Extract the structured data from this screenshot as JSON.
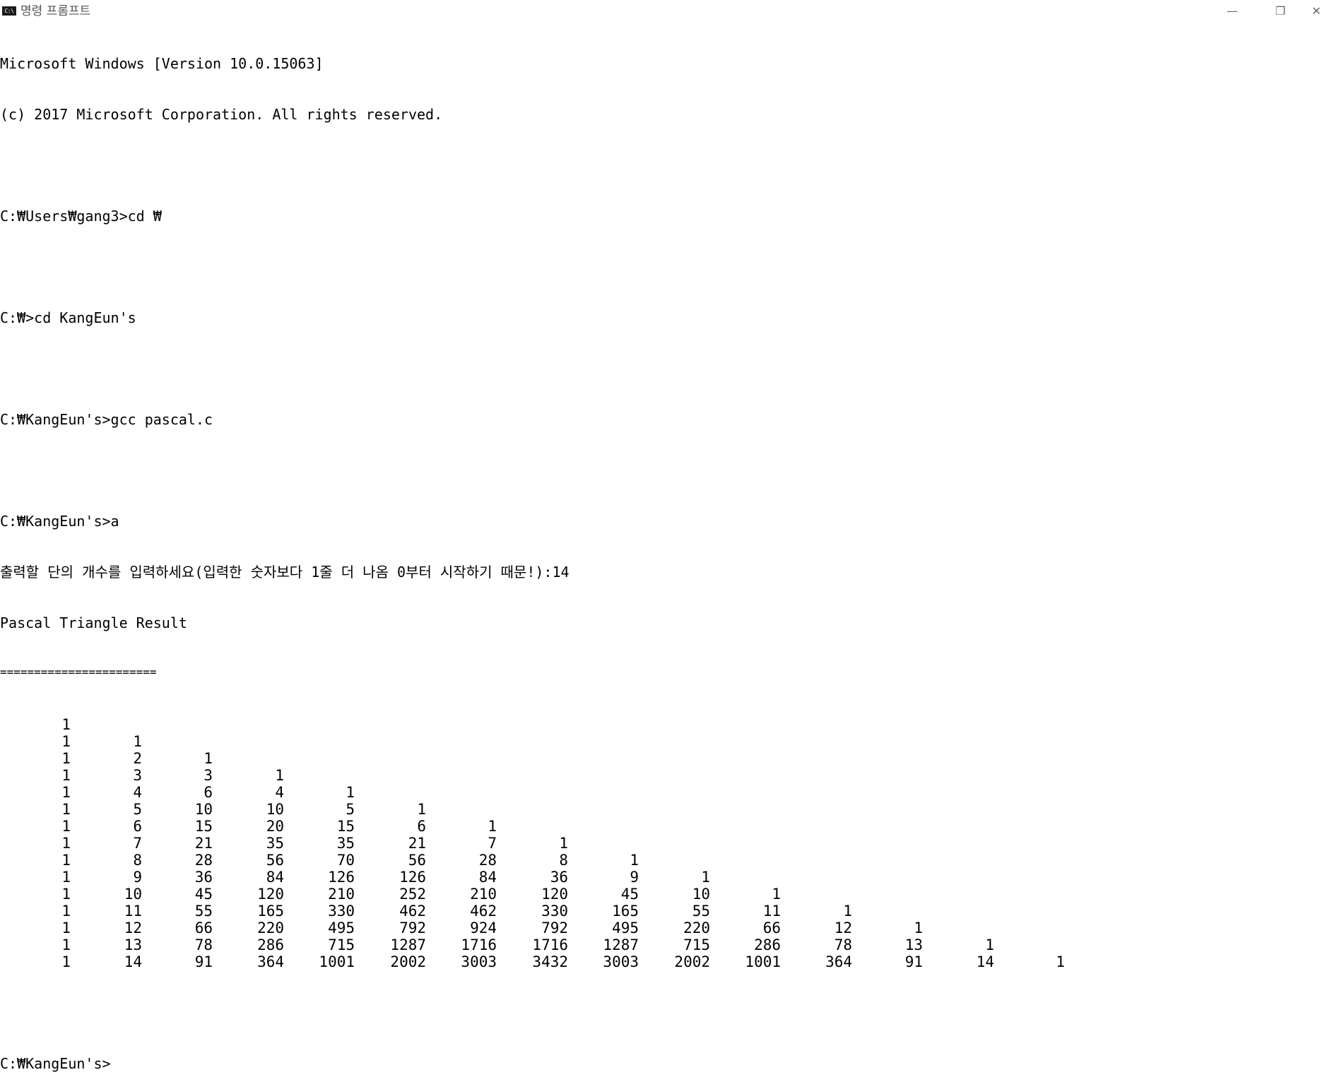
{
  "window": {
    "icon_label": "C:\\",
    "title": "명령 프롬프트",
    "minimize_glyph": "—",
    "maximize_glyph": "❐",
    "close_glyph": "✕"
  },
  "console": {
    "lines_before": [
      "Microsoft Windows [Version 10.0.15063]",
      "(c) 2017 Microsoft Corporation. All rights reserved.",
      "",
      "C:₩Users₩gang3>cd ₩",
      "",
      "C:₩>cd KangEun's",
      "",
      "C:₩KangEun's>gcc pascal.c",
      "",
      "C:₩KangEun's>a",
      "출력할 단의 개수를 입력하세요(입력한 숫자보다 1줄 더 나옴 0부터 시작하기 때문!):14",
      "Pascal Triangle Result"
    ],
    "separator": "=======================",
    "triangle_rows": [
      [
        1
      ],
      [
        1,
        1
      ],
      [
        1,
        2,
        1
      ],
      [
        1,
        3,
        3,
        1
      ],
      [
        1,
        4,
        6,
        4,
        1
      ],
      [
        1,
        5,
        10,
        10,
        5,
        1
      ],
      [
        1,
        6,
        15,
        20,
        15,
        6,
        1
      ],
      [
        1,
        7,
        21,
        35,
        35,
        21,
        7,
        1
      ],
      [
        1,
        8,
        28,
        56,
        70,
        56,
        28,
        8,
        1
      ],
      [
        1,
        9,
        36,
        84,
        126,
        126,
        84,
        36,
        9,
        1
      ],
      [
        1,
        10,
        45,
        120,
        210,
        252,
        210,
        120,
        45,
        10,
        1
      ],
      [
        1,
        11,
        55,
        165,
        330,
        462,
        462,
        330,
        165,
        55,
        11,
        1
      ],
      [
        1,
        12,
        66,
        220,
        495,
        792,
        924,
        792,
        495,
        220,
        66,
        12,
        1
      ],
      [
        1,
        13,
        78,
        286,
        715,
        1287,
        1716,
        1716,
        1287,
        715,
        286,
        78,
        13,
        1
      ],
      [
        1,
        14,
        91,
        364,
        1001,
        2002,
        3003,
        3432,
        3003,
        2002,
        1001,
        364,
        91,
        14,
        1
      ]
    ],
    "lines_after": [
      "",
      "C:₩KangEun's>"
    ]
  }
}
